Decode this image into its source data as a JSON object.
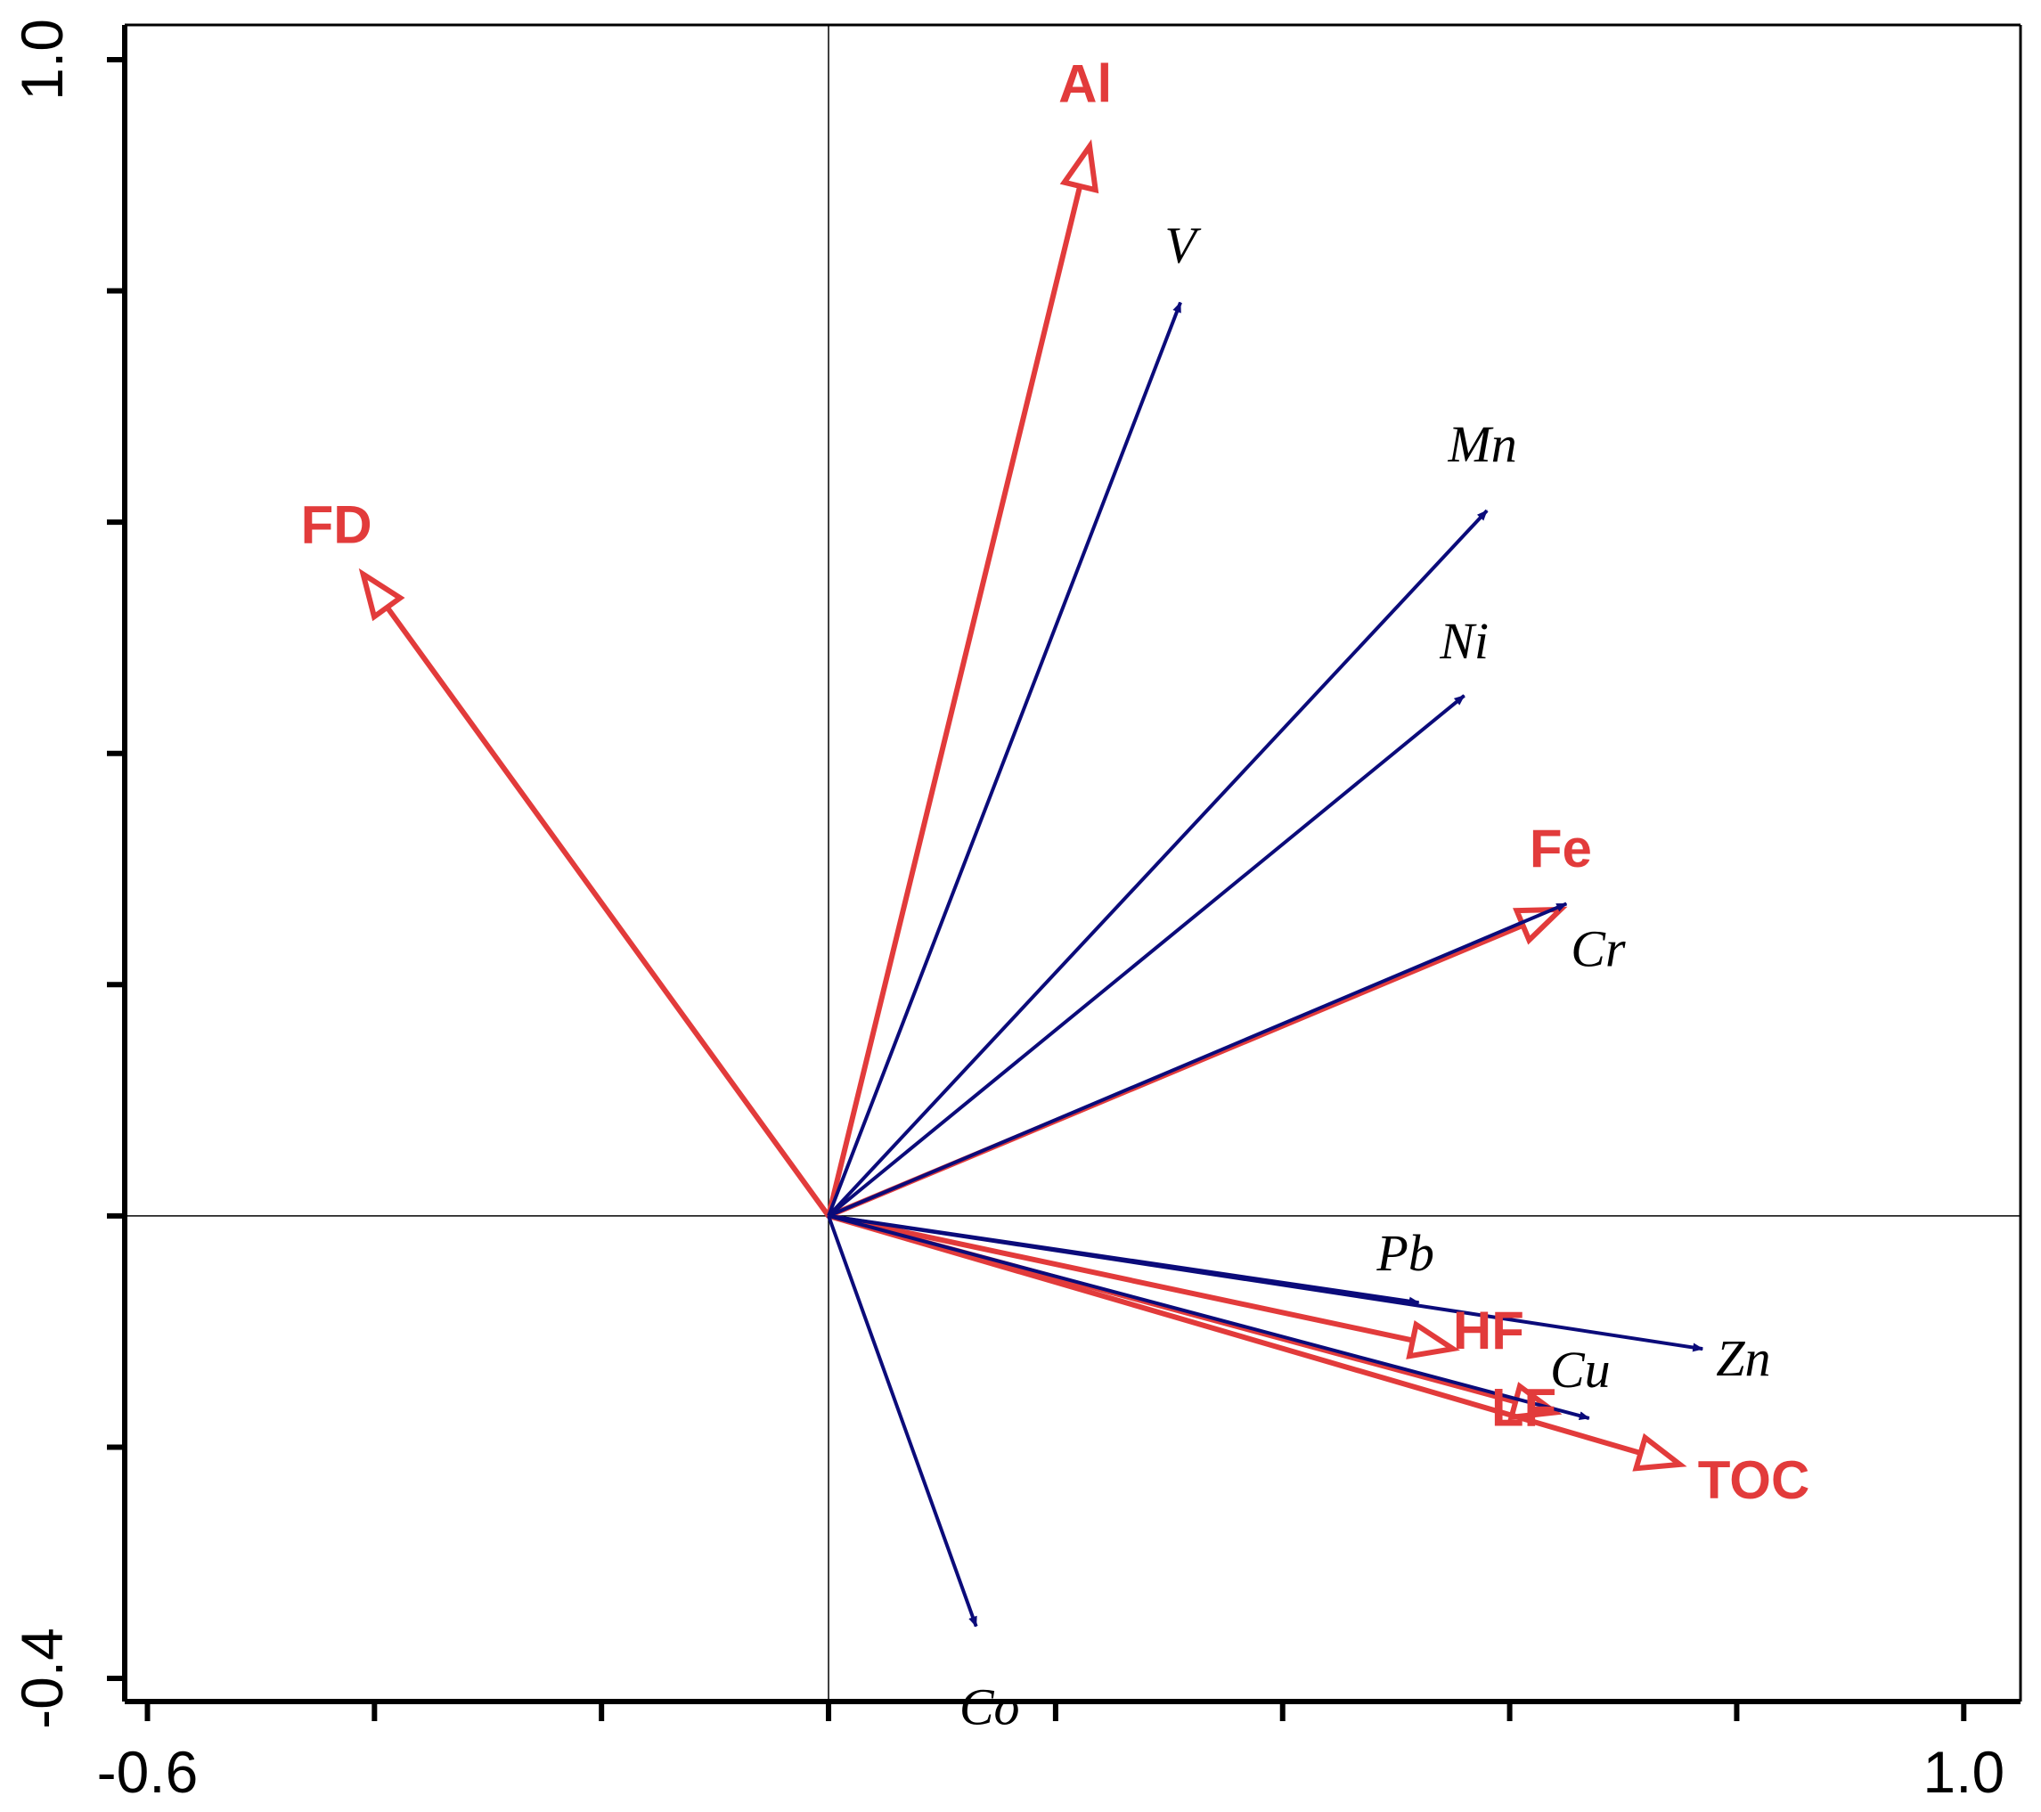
{
  "chart_data": {
    "type": "biplot",
    "title": "",
    "xlabel": "",
    "ylabel": "",
    "xlim": [
      -0.62,
      1.05
    ],
    "ylim": [
      -0.42,
      1.03
    ],
    "x_ticks": [
      -0.6,
      -0.4,
      -0.2,
      0.0,
      0.2,
      0.4,
      0.6,
      0.8,
      1.0
    ],
    "y_ticks": [
      -0.4,
      -0.2,
      0.0,
      0.2,
      0.4,
      0.6,
      0.8,
      1.0
    ],
    "x_tick_labels": [
      {
        "value": -0.6,
        "text": "-0.6"
      },
      {
        "value": 1.0,
        "text": "1.0"
      }
    ],
    "y_tick_labels": [
      {
        "value": -0.4,
        "text": "-0.4"
      },
      {
        "value": 1.0,
        "text": "1.0"
      }
    ],
    "reference_lines": {
      "x": 0.0,
      "y": 0.0
    },
    "colors": {
      "response": "#0b0b7a",
      "explanatory": "#e23b3b",
      "axis": "#000000"
    },
    "series": [
      {
        "name": "response variables",
        "style": "solid-arrow",
        "points": [
          {
            "label": "V",
            "x": 0.31,
            "y": 0.79
          },
          {
            "label": "Mn",
            "x": 0.58,
            "y": 0.61
          },
          {
            "label": "Ni",
            "x": 0.56,
            "y": 0.45
          },
          {
            "label": "Cr",
            "x": 0.65,
            "y": 0.27
          },
          {
            "label": "Pb",
            "x": 0.52,
            "y": -0.075
          },
          {
            "label": "Zn",
            "x": 0.77,
            "y": -0.115
          },
          {
            "label": "Cu",
            "x": 0.67,
            "y": -0.175
          },
          {
            "label": "Co",
            "x": 0.13,
            "y": -0.355
          }
        ]
      },
      {
        "name": "explanatory variables",
        "style": "open-arrow",
        "points": [
          {
            "label": "Al",
            "x": 0.23,
            "y": 0.925
          },
          {
            "label": "FD",
            "x": -0.41,
            "y": 0.555
          },
          {
            "label": "Fe",
            "x": 0.645,
            "y": 0.265
          },
          {
            "label": "HF",
            "x": 0.55,
            "y": -0.115
          },
          {
            "label": "LF",
            "x": 0.64,
            "y": -0.17
          },
          {
            "label": "TOC",
            "x": 0.75,
            "y": -0.215
          }
        ]
      }
    ]
  }
}
